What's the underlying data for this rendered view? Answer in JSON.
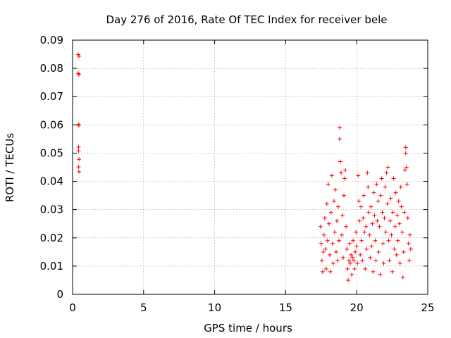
{
  "chart_data": {
    "type": "scatter",
    "title": "Day 276 of 2016, Rate Of TEC Index for receiver bele",
    "xlabel": "GPS time / hours",
    "ylabel": "ROTI / TECUs",
    "xlim": [
      0,
      25
    ],
    "ylim": [
      0,
      0.09
    ],
    "xticks": [
      "0",
      "5",
      "10",
      "15",
      "20",
      "25"
    ],
    "yticks": [
      "0",
      "0.01",
      "0.02",
      "0.03",
      "0.04",
      "0.05",
      "0.06",
      "0.07",
      "0.08",
      "0.09"
    ],
    "grid": true,
    "marker": "+",
    "color": "#ff0000",
    "series": [
      {
        "name": "ROTI",
        "points": [
          [
            0.4,
            0.0849
          ],
          [
            0.45,
            0.0843
          ],
          [
            0.4,
            0.0782
          ],
          [
            0.45,
            0.0778
          ],
          [
            0.4,
            0.0601
          ],
          [
            0.45,
            0.0599
          ],
          [
            0.42,
            0.0521
          ],
          [
            0.42,
            0.0508
          ],
          [
            0.45,
            0.0478
          ],
          [
            0.42,
            0.0451
          ],
          [
            0.45,
            0.0434
          ],
          [
            17.45,
            0.024
          ],
          [
            17.5,
            0.018
          ],
          [
            17.55,
            0.012
          ],
          [
            17.6,
            0.008
          ],
          [
            17.65,
            0.015
          ],
          [
            17.7,
            0.021
          ],
          [
            17.75,
            0.027
          ],
          [
            17.8,
            0.016
          ],
          [
            17.85,
            0.009
          ],
          [
            17.9,
            0.032
          ],
          [
            17.95,
            0.019
          ],
          [
            18.0,
            0.039
          ],
          [
            18.05,
            0.025
          ],
          [
            18.1,
            0.014
          ],
          [
            18.15,
            0.008
          ],
          [
            18.2,
            0.029
          ],
          [
            18.25,
            0.042
          ],
          [
            18.3,
            0.018
          ],
          [
            18.35,
            0.011
          ],
          [
            18.4,
            0.033
          ],
          [
            18.45,
            0.022
          ],
          [
            18.5,
            0.037
          ],
          [
            18.55,
            0.015
          ],
          [
            18.6,
            0.026
          ],
          [
            18.65,
            0.012
          ],
          [
            18.7,
            0.031
          ],
          [
            18.75,
            0.019
          ],
          [
            18.8,
            0.059
          ],
          [
            18.8,
            0.055
          ],
          [
            18.85,
            0.047
          ],
          [
            18.9,
            0.043
          ],
          [
            18.95,
            0.021
          ],
          [
            19.0,
            0.028
          ],
          [
            19.05,
            0.013
          ],
          [
            19.1,
            0.035
          ],
          [
            19.15,
            0.041
          ],
          [
            19.2,
            0.044
          ],
          [
            19.25,
            0.024
          ],
          [
            19.3,
            0.016
          ],
          [
            19.35,
            0.009
          ],
          [
            19.4,
            0.005
          ],
          [
            19.45,
            0.012
          ],
          [
            19.5,
            0.018
          ],
          [
            19.55,
            0.011
          ],
          [
            19.6,
            0.014
          ],
          [
            19.65,
            0.007
          ],
          [
            19.7,
            0.013
          ],
          [
            19.75,
            0.019
          ],
          [
            19.8,
            0.012
          ],
          [
            19.85,
            0.009
          ],
          [
            19.9,
            0.015
          ],
          [
            19.95,
            0.022
          ],
          [
            20.0,
            0.017
          ],
          [
            20.05,
            0.011
          ],
          [
            20.1,
            0.042
          ],
          [
            20.15,
            0.033
          ],
          [
            20.2,
            0.026
          ],
          [
            20.25,
            0.014
          ],
          [
            20.3,
            0.031
          ],
          [
            20.35,
            0.019
          ],
          [
            20.4,
            0.012
          ],
          [
            20.45,
            0.027
          ],
          [
            20.5,
            0.035
          ],
          [
            20.55,
            0.022
          ],
          [
            20.6,
            0.009
          ],
          [
            20.65,
            0.024
          ],
          [
            20.7,
            0.016
          ],
          [
            20.75,
            0.043
          ],
          [
            20.8,
            0.038
          ],
          [
            20.85,
            0.029
          ],
          [
            20.9,
            0.021
          ],
          [
            20.95,
            0.013
          ],
          [
            21.0,
            0.031
          ],
          [
            21.05,
            0.017
          ],
          [
            21.1,
            0.025
          ],
          [
            21.15,
            0.008
          ],
          [
            21.2,
            0.036
          ],
          [
            21.25,
            0.028
          ],
          [
            21.3,
            0.019
          ],
          [
            21.35,
            0.012
          ],
          [
            21.4,
            0.039
          ],
          [
            21.45,
            0.026
          ],
          [
            21.5,
            0.033
          ],
          [
            21.55,
            0.015
          ],
          [
            21.6,
            0.024
          ],
          [
            21.65,
            0.007
          ],
          [
            21.7,
            0.035
          ],
          [
            21.75,
            0.041
          ],
          [
            21.8,
            0.029
          ],
          [
            21.85,
            0.018
          ],
          [
            21.9,
            0.011
          ],
          [
            21.95,
            0.027
          ],
          [
            22.0,
            0.038
          ],
          [
            22.05,
            0.022
          ],
          [
            22.1,
            0.043
          ],
          [
            22.15,
            0.032
          ],
          [
            22.2,
            0.045
          ],
          [
            22.25,
            0.019
          ],
          [
            22.3,
            0.012
          ],
          [
            22.35,
            0.026
          ],
          [
            22.4,
            0.034
          ],
          [
            22.45,
            0.021
          ],
          [
            22.5,
            0.008
          ],
          [
            22.55,
            0.029
          ],
          [
            22.6,
            0.041
          ],
          [
            22.65,
            0.016
          ],
          [
            22.7,
            0.024
          ],
          [
            22.75,
            0.036
          ],
          [
            22.8,
            0.014
          ],
          [
            22.85,
            0.028
          ],
          [
            22.9,
            0.019
          ],
          [
            22.95,
            0.033
          ],
          [
            23.0,
            0.025
          ],
          [
            23.05,
            0.011
          ],
          [
            23.1,
            0.038
          ],
          [
            23.15,
            0.031
          ],
          [
            23.2,
            0.022
          ],
          [
            23.25,
            0.006
          ],
          [
            23.3,
            0.015
          ],
          [
            23.35,
            0.029
          ],
          [
            23.4,
            0.044
          ],
          [
            23.45,
            0.052
          ],
          [
            23.45,
            0.05
          ],
          [
            23.5,
            0.045
          ],
          [
            23.55,
            0.039
          ],
          [
            23.6,
            0.027
          ],
          [
            23.65,
            0.018
          ],
          [
            23.7,
            0.012
          ],
          [
            23.75,
            0.021
          ],
          [
            23.8,
            0.016
          ]
        ]
      }
    ]
  }
}
